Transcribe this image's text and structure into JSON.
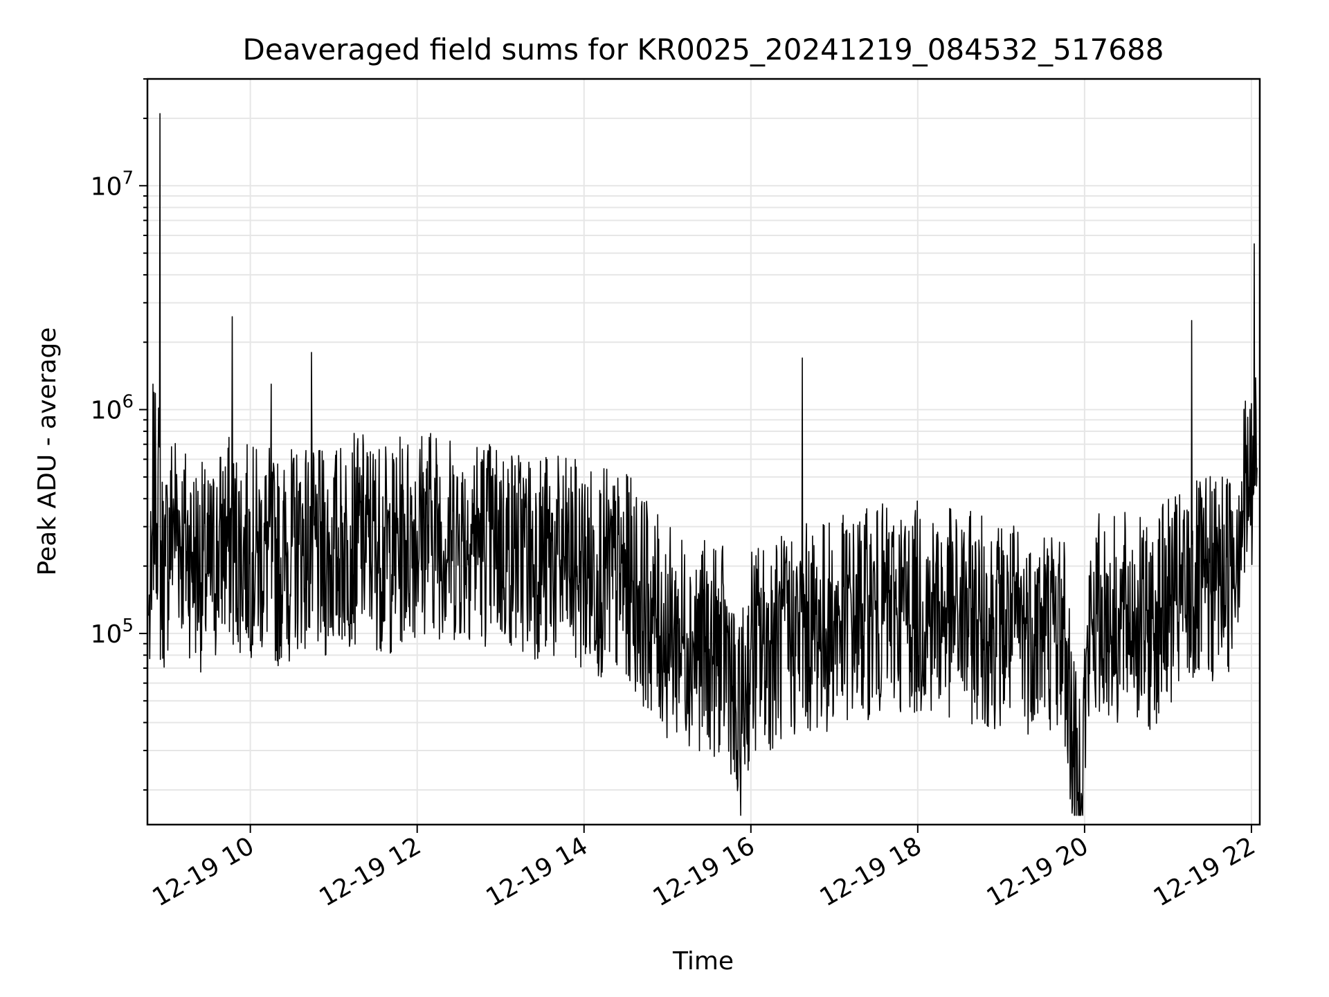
{
  "chart_data": {
    "type": "line",
    "title": "Deaveraged field sums for KR0025_20241219_084532_517688",
    "xlabel": "Time",
    "ylabel": "Peak ADU - average",
    "yscale": "log",
    "grid": true,
    "ylim": [
      14000,
      30000000
    ],
    "xlim": [
      "2024-12-19T08:46",
      "2024-12-19T22:06"
    ],
    "x_tick_labels": [
      "12-19 10",
      "12-19 12",
      "12-19 14",
      "12-19 16",
      "12-19 18",
      "12-19 20",
      "12-19 22"
    ],
    "y_tick_labels": [
      "10^5",
      "10^6",
      "10^7"
    ],
    "series": [
      {
        "color": "#000000",
        "x": [
          "2024-12-19T08:47",
          "2024-12-19T08:50",
          "2024-12-19T08:52",
          "2024-12-19T08:55",
          "2024-12-19T08:59",
          "2024-12-19T09:05",
          "2024-12-19T09:12",
          "2024-12-19T09:20",
          "2024-12-19T09:30",
          "2024-12-19T09:40",
          "2024-12-19T09:47",
          "2024-12-19T09:55",
          "2024-12-19T10:05",
          "2024-12-19T10:15",
          "2024-12-19T10:25",
          "2024-12-19T10:35",
          "2024-12-19T10:44",
          "2024-12-19T10:55",
          "2024-12-19T11:10",
          "2024-12-19T11:25",
          "2024-12-19T11:40",
          "2024-12-19T11:55",
          "2024-12-19T12:10",
          "2024-12-19T12:25",
          "2024-12-19T12:40",
          "2024-12-19T12:55",
          "2024-12-19T13:10",
          "2024-12-19T13:25",
          "2024-12-19T13:40",
          "2024-12-19T13:55",
          "2024-12-19T14:10",
          "2024-12-19T14:20",
          "2024-12-19T14:35",
          "2024-12-19T14:50",
          "2024-12-19T15:00",
          "2024-12-19T15:15",
          "2024-12-19T15:30",
          "2024-12-19T15:45",
          "2024-12-19T15:50",
          "2024-12-19T16:00",
          "2024-12-19T16:15",
          "2024-12-19T16:30",
          "2024-12-19T16:37",
          "2024-12-19T16:45",
          "2024-12-19T17:00",
          "2024-12-19T17:15",
          "2024-12-19T17:30",
          "2024-12-19T17:45",
          "2024-12-19T18:00",
          "2024-12-19T18:15",
          "2024-12-19T18:30",
          "2024-12-19T18:45",
          "2024-12-19T19:00",
          "2024-12-19T19:15",
          "2024-12-19T19:30",
          "2024-12-19T19:45",
          "2024-12-19T19:55",
          "2024-12-19T20:05",
          "2024-12-19T20:15",
          "2024-12-19T20:25",
          "2024-12-19T20:35",
          "2024-12-19T20:45",
          "2024-12-19T20:55",
          "2024-12-19T21:05",
          "2024-12-19T21:15",
          "2024-12-19T21:17",
          "2024-12-19T21:25",
          "2024-12-19T21:35",
          "2024-12-19T21:45",
          "2024-12-19T21:52",
          "2024-12-19T21:58",
          "2024-12-19T22:02",
          "2024-12-19T22:04"
        ],
        "y": [
          120000,
          1300000,
          400000,
          21000000,
          200000,
          350000,
          250000,
          220000,
          180000,
          260000,
          2600000,
          240000,
          230000,
          1300000,
          210000,
          250000,
          1800000,
          220000,
          260000,
          270000,
          230000,
          280000,
          300000,
          260000,
          280000,
          250000,
          240000,
          230000,
          210000,
          200000,
          190000,
          180000,
          170000,
          120000,
          100000,
          95000,
          85000,
          80000,
          30000,
          85000,
          90000,
          100000,
          1700000,
          105000,
          110000,
          120000,
          125000,
          130000,
          130000,
          125000,
          120000,
          115000,
          110000,
          105000,
          110000,
          105000,
          18000,
          115000,
          120000,
          110000,
          125000,
          100000,
          130000,
          140000,
          150000,
          2500000,
          160000,
          180000,
          200000,
          350000,
          450000,
          5500000,
          550000
        ]
      }
    ]
  }
}
